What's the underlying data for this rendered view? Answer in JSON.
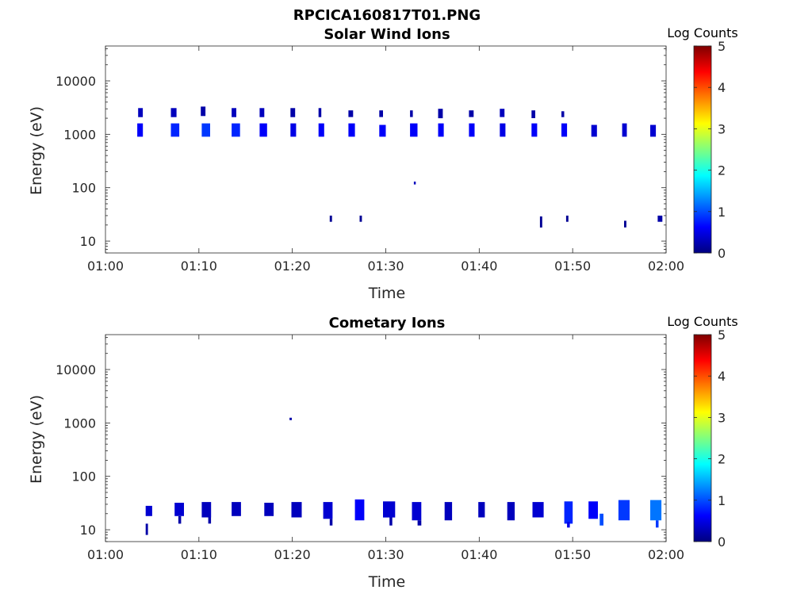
{
  "figure": {
    "title": "RPCICA160817T01.PNG"
  },
  "colorbar": {
    "label": "Log Counts",
    "ticks": [
      "0",
      "1",
      "2",
      "3",
      "4",
      "5"
    ],
    "range": [
      0,
      5
    ],
    "colormap": "jet"
  },
  "chart_data": [
    {
      "type": "heatmap",
      "title": "Solar Wind Ions",
      "xlabel": "Time",
      "ylabel": "Energy (eV)",
      "xlim": [
        "01:00",
        "02:00"
      ],
      "xticks": [
        "01:00",
        "01:10",
        "01:20",
        "01:30",
        "01:40",
        "01:50",
        "02:00"
      ],
      "yscale": "log",
      "ylim": [
        6,
        45000
      ],
      "yticks": [
        "10",
        "100",
        "1000",
        "10000"
      ],
      "colorbar_label": "Log Counts",
      "cells": [
        {
          "t": 3.5,
          "dt": 0.5,
          "e_lo": 2100,
          "e_hi": 3100,
          "c": 0.3
        },
        {
          "t": 3.4,
          "dt": 0.6,
          "e_lo": 900,
          "e_hi": 1600,
          "c": 0.6
        },
        {
          "t": 7.0,
          "dt": 0.6,
          "e_lo": 2100,
          "e_hi": 3100,
          "c": 0.3
        },
        {
          "t": 7.0,
          "dt": 0.9,
          "e_lo": 900,
          "e_hi": 1600,
          "c": 0.8
        },
        {
          "t": 10.2,
          "dt": 0.5,
          "e_lo": 2200,
          "e_hi": 3300,
          "c": 0.2
        },
        {
          "t": 10.3,
          "dt": 0.9,
          "e_lo": 900,
          "e_hi": 1600,
          "c": 0.9
        },
        {
          "t": 13.5,
          "dt": 0.5,
          "e_lo": 2100,
          "e_hi": 3100,
          "c": 0.3
        },
        {
          "t": 13.5,
          "dt": 0.9,
          "e_lo": 900,
          "e_hi": 1600,
          "c": 0.8
        },
        {
          "t": 16.5,
          "dt": 0.5,
          "e_lo": 2100,
          "e_hi": 3100,
          "c": 0.3
        },
        {
          "t": 16.5,
          "dt": 0.8,
          "e_lo": 900,
          "e_hi": 1600,
          "c": 0.6
        },
        {
          "t": 19.8,
          "dt": 0.5,
          "e_lo": 2100,
          "e_hi": 3100,
          "c": 0.2
        },
        {
          "t": 19.8,
          "dt": 0.6,
          "e_lo": 900,
          "e_hi": 1600,
          "c": 0.5
        },
        {
          "t": 22.8,
          "dt": 0.3,
          "e_lo": 2100,
          "e_hi": 3100,
          "c": 0.2
        },
        {
          "t": 22.8,
          "dt": 0.6,
          "e_lo": 900,
          "e_hi": 1600,
          "c": 0.6
        },
        {
          "t": 26.0,
          "dt": 0.5,
          "e_lo": 2100,
          "e_hi": 2800,
          "c": 0.2
        },
        {
          "t": 26.0,
          "dt": 0.7,
          "e_lo": 900,
          "e_hi": 1600,
          "c": 0.6
        },
        {
          "t": 29.3,
          "dt": 0.4,
          "e_lo": 2100,
          "e_hi": 2800,
          "c": 0.2
        },
        {
          "t": 29.3,
          "dt": 0.7,
          "e_lo": 900,
          "e_hi": 1500,
          "c": 0.6
        },
        {
          "t": 32.6,
          "dt": 0.3,
          "e_lo": 2100,
          "e_hi": 2800,
          "c": 0.2
        },
        {
          "t": 32.6,
          "dt": 0.8,
          "e_lo": 900,
          "e_hi": 1600,
          "c": 0.6
        },
        {
          "t": 35.6,
          "dt": 0.5,
          "e_lo": 2000,
          "e_hi": 3000,
          "c": 0.2
        },
        {
          "t": 35.6,
          "dt": 0.6,
          "e_lo": 900,
          "e_hi": 1600,
          "c": 0.6
        },
        {
          "t": 38.9,
          "dt": 0.5,
          "e_lo": 2100,
          "e_hi": 2800,
          "c": 0.2
        },
        {
          "t": 38.9,
          "dt": 0.6,
          "e_lo": 900,
          "e_hi": 1600,
          "c": 0.6
        },
        {
          "t": 42.2,
          "dt": 0.5,
          "e_lo": 2100,
          "e_hi": 3000,
          "c": 0.3
        },
        {
          "t": 42.2,
          "dt": 0.6,
          "e_lo": 900,
          "e_hi": 1600,
          "c": 0.5
        },
        {
          "t": 45.6,
          "dt": 0.4,
          "e_lo": 2000,
          "e_hi": 2800,
          "c": 0.2
        },
        {
          "t": 45.6,
          "dt": 0.6,
          "e_lo": 900,
          "e_hi": 1600,
          "c": 0.6
        },
        {
          "t": 48.8,
          "dt": 0.3,
          "e_lo": 2100,
          "e_hi": 2700,
          "c": 0.2
        },
        {
          "t": 48.8,
          "dt": 0.6,
          "e_lo": 900,
          "e_hi": 1600,
          "c": 0.6
        },
        {
          "t": 52.0,
          "dt": 0.6,
          "e_lo": 900,
          "e_hi": 1500,
          "c": 0.4
        },
        {
          "t": 55.3,
          "dt": 0.5,
          "e_lo": 900,
          "e_hi": 1600,
          "c": 0.4
        },
        {
          "t": 58.3,
          "dt": 0.6,
          "e_lo": 900,
          "e_hi": 1500,
          "c": 0.4
        },
        {
          "t": 33.0,
          "dt": 0.2,
          "e_lo": 115,
          "e_hi": 130,
          "c": 0.3
        },
        {
          "t": 24.0,
          "dt": 0.25,
          "e_lo": 23,
          "e_hi": 30,
          "c": 0.1
        },
        {
          "t": 27.2,
          "dt": 0.25,
          "e_lo": 23,
          "e_hi": 30,
          "c": 0.1
        },
        {
          "t": 46.5,
          "dt": 0.25,
          "e_lo": 18,
          "e_hi": 29,
          "c": 0.1
        },
        {
          "t": 49.3,
          "dt": 0.25,
          "e_lo": 23,
          "e_hi": 30,
          "c": 0.1
        },
        {
          "t": 55.5,
          "dt": 0.25,
          "e_lo": 18,
          "e_hi": 24,
          "c": 0.1
        },
        {
          "t": 59.1,
          "dt": 0.5,
          "e_lo": 23,
          "e_hi": 30,
          "c": 0.2
        }
      ]
    },
    {
      "type": "heatmap",
      "title": "Cometary Ions",
      "xlabel": "Time",
      "ylabel": "Energy (eV)",
      "xlim": [
        "01:00",
        "02:00"
      ],
      "xticks": [
        "01:00",
        "01:10",
        "01:20",
        "01:30",
        "01:40",
        "01:50",
        "02:00"
      ],
      "yscale": "log",
      "ylim": [
        6,
        45000
      ],
      "yticks": [
        "10",
        "100",
        "1000",
        "10000"
      ],
      "colorbar_label": "Log Counts",
      "cells": [
        {
          "t": 19.7,
          "dt": 0.25,
          "e_lo": 1130,
          "e_hi": 1250,
          "c": 0.2
        },
        {
          "t": 4.3,
          "dt": 0.7,
          "e_lo": 18,
          "e_hi": 28,
          "c": 0.4
        },
        {
          "t": 4.3,
          "dt": 0.25,
          "e_lo": 8,
          "e_hi": 13,
          "c": 0.2
        },
        {
          "t": 7.4,
          "dt": 1.0,
          "e_lo": 18,
          "e_hi": 32,
          "c": 0.4
        },
        {
          "t": 7.8,
          "dt": 0.3,
          "e_lo": 13,
          "e_hi": 18,
          "c": 0.2
        },
        {
          "t": 10.3,
          "dt": 1.0,
          "e_lo": 17,
          "e_hi": 33,
          "c": 0.3
        },
        {
          "t": 11.0,
          "dt": 0.3,
          "e_lo": 13,
          "e_hi": 17,
          "c": 0.2
        },
        {
          "t": 13.5,
          "dt": 1.0,
          "e_lo": 18,
          "e_hi": 33,
          "c": 0.3
        },
        {
          "t": 17.0,
          "dt": 1.0,
          "e_lo": 18,
          "e_hi": 32,
          "c": 0.3
        },
        {
          "t": 19.9,
          "dt": 1.1,
          "e_lo": 17,
          "e_hi": 33,
          "c": 0.3
        },
        {
          "t": 23.3,
          "dt": 1.0,
          "e_lo": 16,
          "e_hi": 33,
          "c": 0.4
        },
        {
          "t": 24.0,
          "dt": 0.3,
          "e_lo": 12,
          "e_hi": 16,
          "c": 0.2
        },
        {
          "t": 26.7,
          "dt": 1.0,
          "e_lo": 15,
          "e_hi": 37,
          "c": 0.6
        },
        {
          "t": 29.7,
          "dt": 1.3,
          "e_lo": 17,
          "e_hi": 34,
          "c": 0.4
        },
        {
          "t": 30.4,
          "dt": 0.3,
          "e_lo": 12,
          "e_hi": 17,
          "c": 0.2
        },
        {
          "t": 32.8,
          "dt": 1.0,
          "e_lo": 15,
          "e_hi": 33,
          "c": 0.4
        },
        {
          "t": 33.4,
          "dt": 0.4,
          "e_lo": 12,
          "e_hi": 15,
          "c": 0.2
        },
        {
          "t": 36.3,
          "dt": 0.8,
          "e_lo": 15,
          "e_hi": 33,
          "c": 0.3
        },
        {
          "t": 39.9,
          "dt": 0.7,
          "e_lo": 17,
          "e_hi": 33,
          "c": 0.3
        },
        {
          "t": 43.0,
          "dt": 0.8,
          "e_lo": 15,
          "e_hi": 33,
          "c": 0.3
        },
        {
          "t": 45.7,
          "dt": 1.2,
          "e_lo": 17,
          "e_hi": 33,
          "c": 0.4
        },
        {
          "t": 49.1,
          "dt": 0.9,
          "e_lo": 13,
          "e_hi": 34,
          "c": 0.8
        },
        {
          "t": 49.4,
          "dt": 0.3,
          "e_lo": 11,
          "e_hi": 14,
          "c": 0.5
        },
        {
          "t": 51.7,
          "dt": 1.0,
          "e_lo": 16,
          "e_hi": 34,
          "c": 0.6
        },
        {
          "t": 52.9,
          "dt": 0.4,
          "e_lo": 12,
          "e_hi": 20,
          "c": 1.0
        },
        {
          "t": 54.9,
          "dt": 1.2,
          "e_lo": 15,
          "e_hi": 36,
          "c": 0.9
        },
        {
          "t": 58.3,
          "dt": 1.2,
          "e_lo": 15,
          "e_hi": 36,
          "c": 1.2
        },
        {
          "t": 58.9,
          "dt": 0.3,
          "e_lo": 11,
          "e_hi": 15,
          "c": 0.9
        }
      ]
    }
  ]
}
